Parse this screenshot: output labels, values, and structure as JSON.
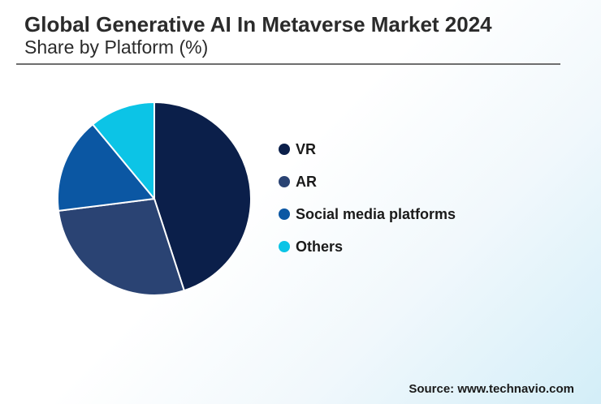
{
  "header": {
    "title": "Global Generative AI In Metaverse Market 2024",
    "subtitle": "Share by Platform (%)"
  },
  "chart_data": {
    "type": "pie",
    "title": "Global Generative AI In Metaverse Market 2024",
    "subtitle": "Share by Platform (%)",
    "categories": [
      "VR",
      "AR",
      "Social media platforms",
      "Others"
    ],
    "values": [
      45,
      28,
      16,
      11
    ],
    "colors": [
      "#0b1f4a",
      "#2a4373",
      "#0b57a3",
      "#0cc4e6"
    ],
    "legend_position": "right"
  },
  "footer": {
    "source": "Source: www.technavio.com"
  }
}
